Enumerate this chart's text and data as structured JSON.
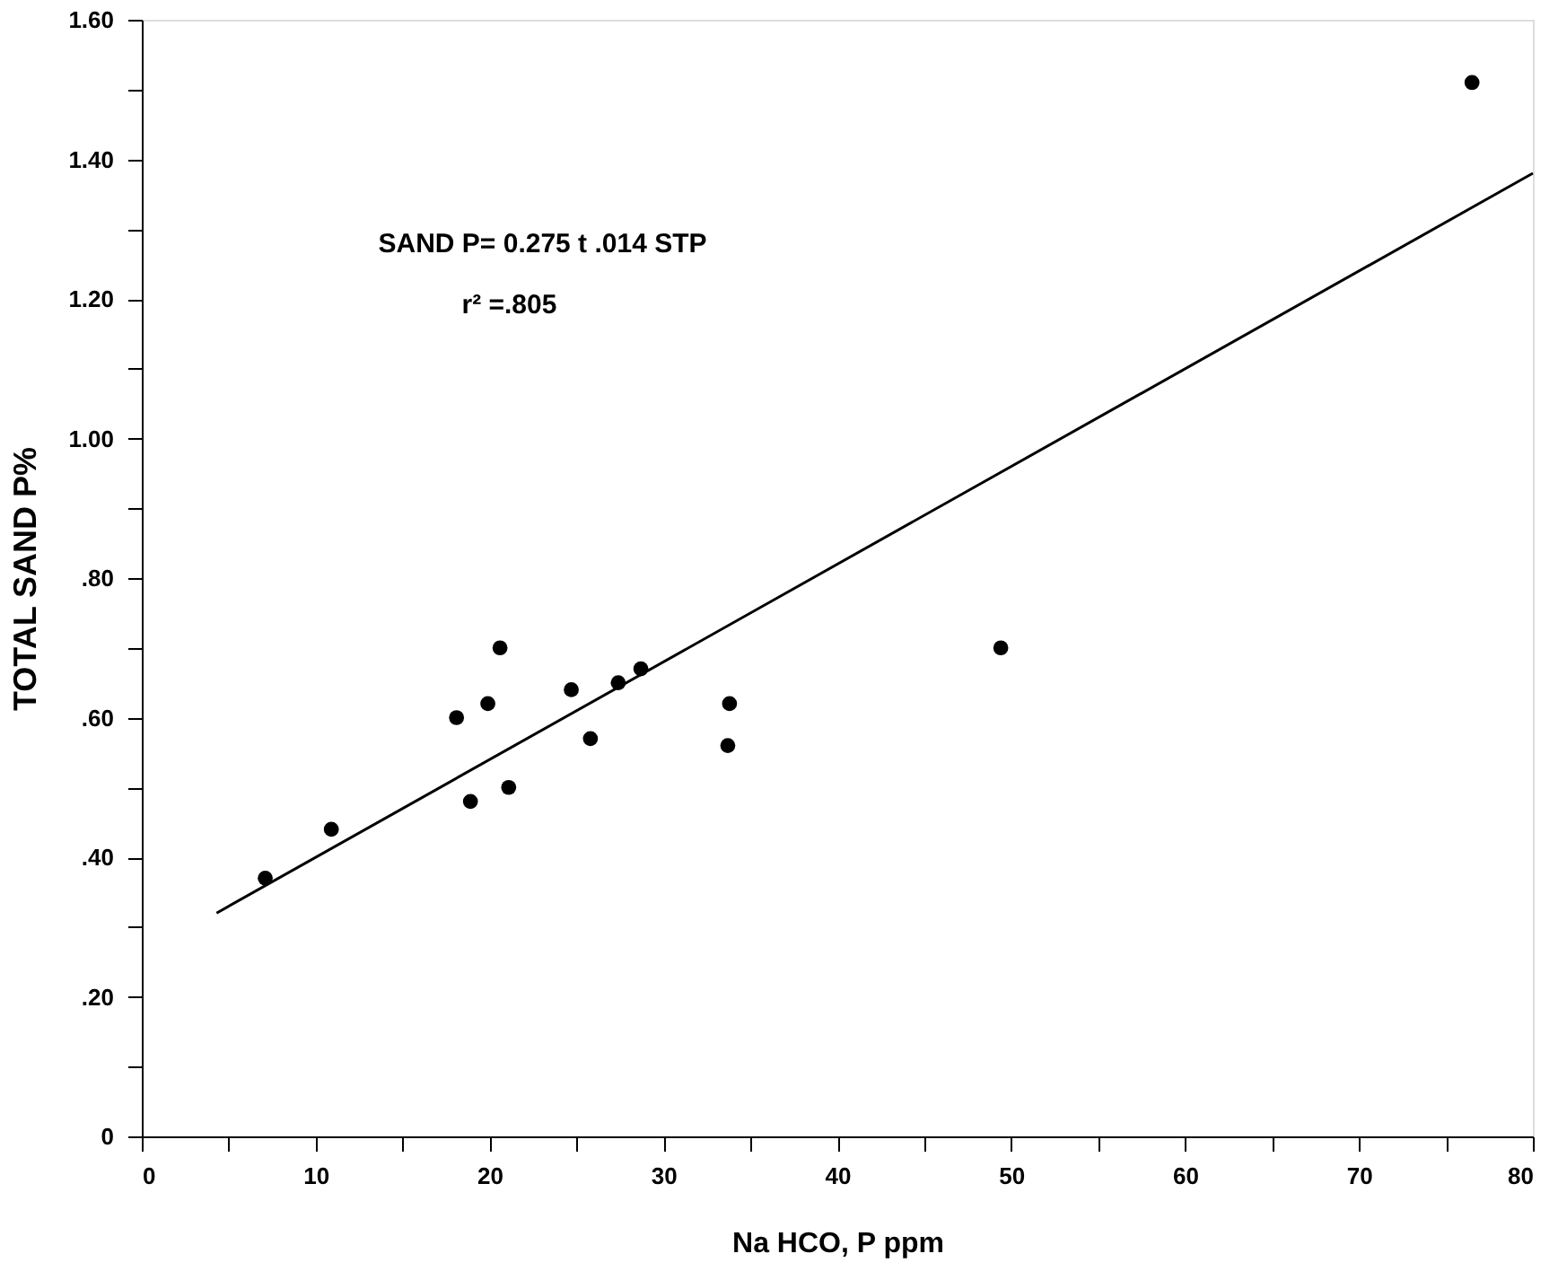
{
  "chart_data": {
    "type": "scatter",
    "xlabel": "Na HCO, P ppm",
    "ylabel": "TOTAL SAND P%",
    "annotations": [
      "SAND P= 0.275 t .014 STP",
      "r² =.805"
    ],
    "xlim": [
      0,
      80
    ],
    "ylim": [
      0,
      1.6
    ],
    "xticks": [
      0,
      {
        "value": 5,
        "label": null
      },
      10,
      {
        "value": 15,
        "label": null
      },
      20,
      {
        "value": 25,
        "label": null
      },
      30,
      {
        "value": 35,
        "label": null
      },
      40,
      {
        "value": 45,
        "label": null
      },
      50,
      {
        "value": 55,
        "label": null
      },
      60,
      {
        "value": 65,
        "label": null
      },
      70,
      {
        "value": 75,
        "label": null
      },
      80
    ],
    "yticks": [
      0,
      {
        "value": 0.1,
        "label": null
      },
      {
        "value": 0.2,
        "label": ".20"
      },
      {
        "value": 0.3,
        "label": null
      },
      {
        "value": 0.4,
        "label": ".40"
      },
      {
        "value": 0.5,
        "label": null
      },
      {
        "value": 0.6,
        "label": ".60"
      },
      {
        "value": 0.7,
        "label": null
      },
      {
        "value": 0.8,
        "label": ".80"
      },
      {
        "value": 0.9,
        "label": null
      },
      {
        "value": 1.0,
        "label": "1.00"
      },
      {
        "value": 1.1,
        "label": null
      },
      {
        "value": 1.2,
        "label": "1.20"
      },
      {
        "value": 1.3,
        "label": null
      },
      {
        "value": 1.4,
        "label": "1.40"
      },
      {
        "value": 1.5,
        "label": null
      },
      {
        "value": 1.6,
        "label": "1.60"
      }
    ],
    "grid": false,
    "marker": "circle",
    "series": [
      {
        "color": "#000000",
        "x": [
          7.1,
          10.9,
          18.1,
          18.9,
          19.9,
          20.6,
          21.1,
          24.7,
          25.8,
          27.4,
          28.7,
          33.8,
          33.7,
          49.4,
          76.5
        ],
        "values": [
          0.37,
          0.44,
          0.6,
          0.48,
          0.62,
          0.7,
          0.5,
          0.64,
          0.57,
          0.65,
          0.67,
          0.62,
          0.56,
          0.7,
          1.51
        ]
      },
      {
        "type": "line",
        "color": "#000000",
        "marker": "none",
        "line_style": "solid",
        "x": [
          4.3,
          80
        ],
        "values": [
          0.32,
          1.38
        ]
      }
    ]
  }
}
